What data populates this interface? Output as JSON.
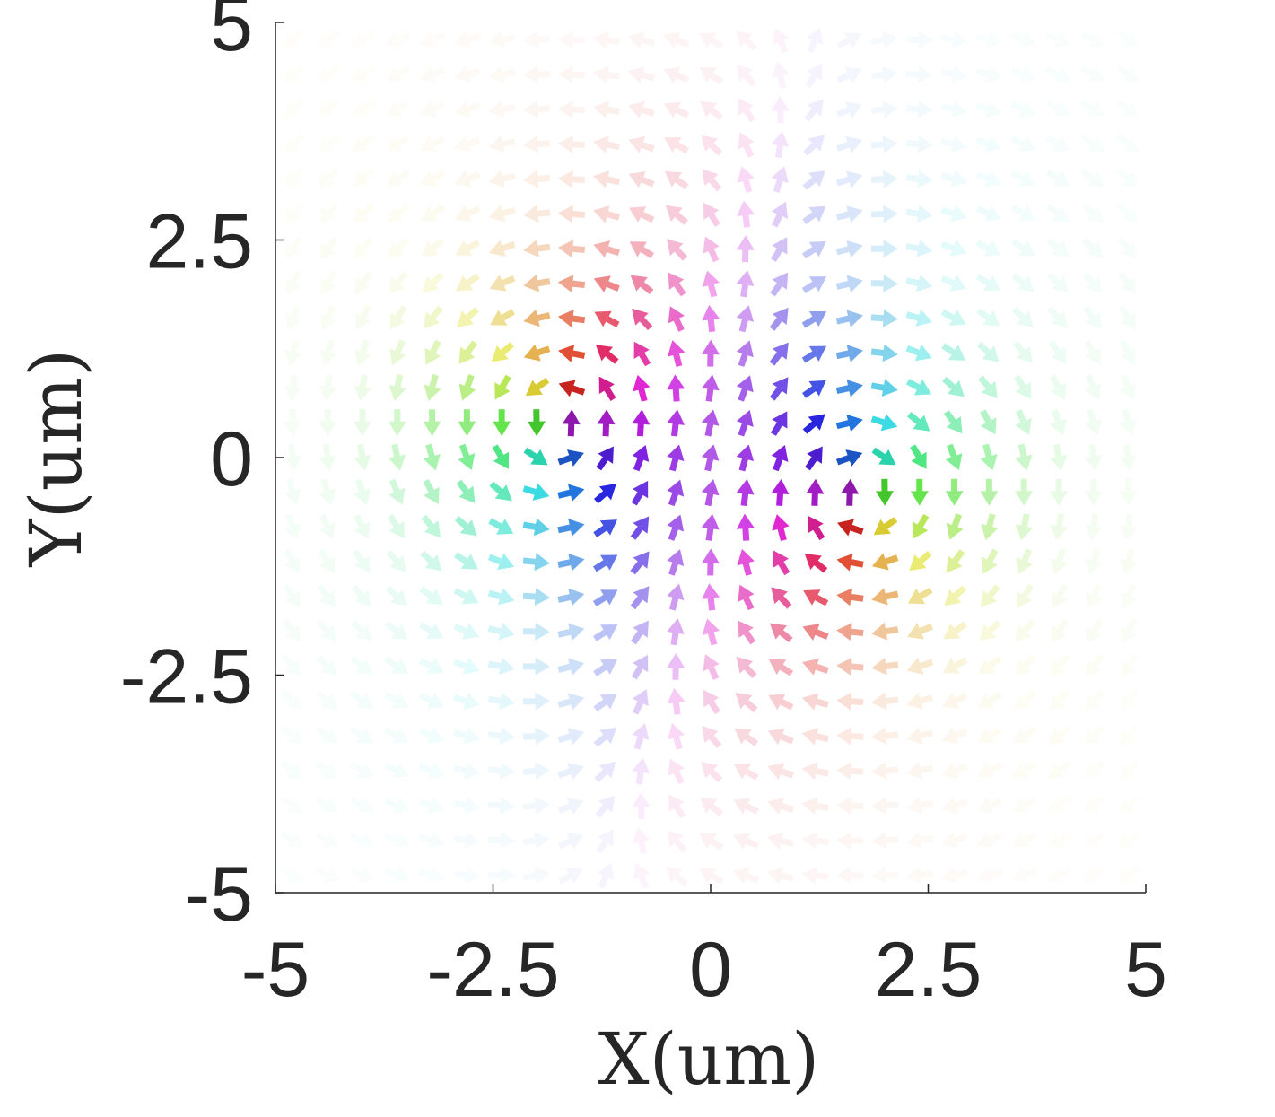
{
  "chart_data": {
    "type": "quiver",
    "title": "",
    "xlabel": "X(um)",
    "ylabel": "Y(um)",
    "xlim": [
      -5,
      5
    ],
    "ylim": [
      -5,
      5
    ],
    "xticks": [
      "-5",
      "-2.5",
      "0",
      "2.5",
      "5"
    ],
    "yticks": [
      "5",
      "2.5",
      "0",
      "-2.5",
      "-5"
    ],
    "xtick_values": [
      -5,
      -2.5,
      0,
      2.5,
      5
    ],
    "ytick_values": [
      5,
      2.5,
      0,
      -2.5,
      -5
    ],
    "grid": false,
    "box": "left-bottom",
    "field": {
      "description_of_vectors": "magnetization texture: two counter-rotating vortex-like cores",
      "grid_spacing": 0.4,
      "core_positions": [
        [
          -1.7,
          0.4
        ],
        [
          1.7,
          -0.4
        ]
      ],
      "color_mapping": "in-plane angle to hue, out-of-plane component to lightness/opacity"
    }
  },
  "colors": {
    "axis": "#262626",
    "background": "#ffffff"
  }
}
